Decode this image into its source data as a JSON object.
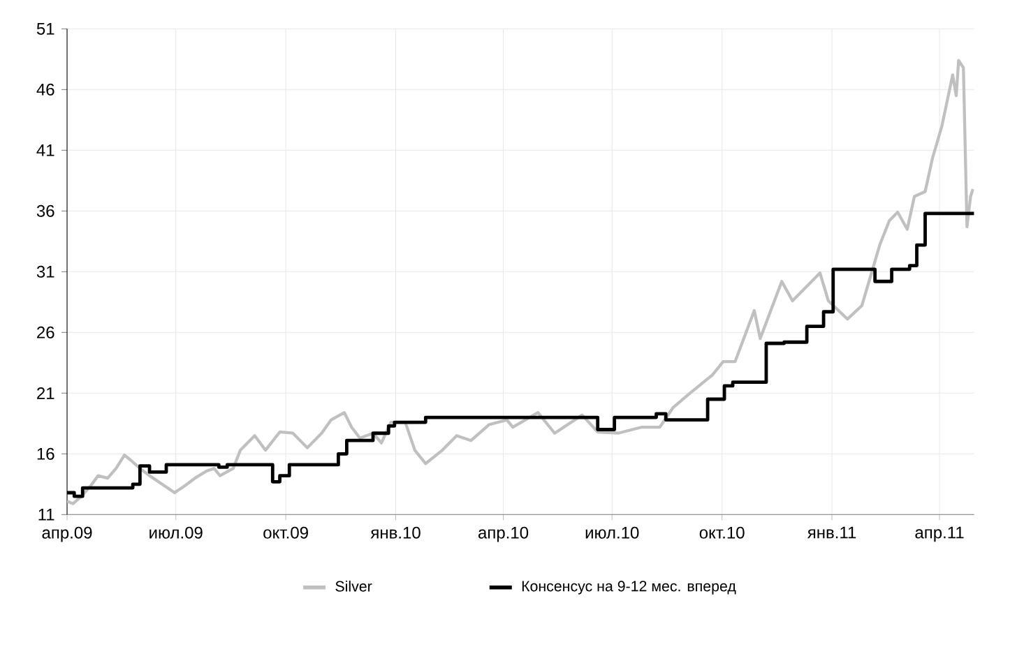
{
  "chart_data": {
    "type": "line",
    "xlim": [
      "2009-04-01",
      "2011-04-30"
    ],
    "ylim": [
      11,
      51
    ],
    "yticks": [
      11,
      16,
      21,
      26,
      31,
      36,
      41,
      46,
      51
    ],
    "xticks": [
      {
        "value": "2009-04-01",
        "label": "апр.09"
      },
      {
        "value": "2009-07-01",
        "label": "июл.09"
      },
      {
        "value": "2009-10-01",
        "label": "окт.09"
      },
      {
        "value": "2010-01-01",
        "label": "янв.10"
      },
      {
        "value": "2010-04-01",
        "label": "апр.10"
      },
      {
        "value": "2010-07-01",
        "label": "июл.10"
      },
      {
        "value": "2010-10-01",
        "label": "окт.10"
      },
      {
        "value": "2011-01-01",
        "label": "янв.11"
      },
      {
        "value": "2011-04-01",
        "label": "апр.11"
      }
    ],
    "grid": true,
    "legend": "bottom",
    "marker": "none",
    "line_style": "solid",
    "series": [
      {
        "name": "Silver",
        "color": "#c0c0c0",
        "x": [
          "2009-04-01",
          "2009-04-06",
          "2009-04-13",
          "2009-04-21",
          "2009-04-27",
          "2009-05-05",
          "2009-05-12",
          "2009-05-19",
          "2009-05-24",
          "2009-06-01",
          "2009-06-09",
          "2009-06-18",
          "2009-06-30",
          "2009-07-09",
          "2009-07-17",
          "2009-07-27",
          "2009-08-02",
          "2009-08-07",
          "2009-08-18",
          "2009-08-24",
          "2009-09-05",
          "2009-09-14",
          "2009-09-26",
          "2009-10-07",
          "2009-10-19",
          "2009-10-31",
          "2009-11-08",
          "2009-11-19",
          "2009-11-25",
          "2009-12-02",
          "2009-12-13",
          "2009-12-20",
          "2009-12-28",
          "2010-01-09",
          "2010-01-17",
          "2010-01-26",
          "2010-02-09",
          "2010-02-21",
          "2010-03-05",
          "2010-03-20",
          "2010-04-04",
          "2010-04-09",
          "2010-04-30",
          "2010-05-14",
          "2010-06-06",
          "2010-06-19",
          "2010-07-06",
          "2010-07-26",
          "2010-08-10",
          "2010-08-21",
          "2010-09-03",
          "2010-09-23",
          "2010-10-02",
          "2010-10-12",
          "2010-10-28",
          "2010-11-02",
          "2010-11-20",
          "2010-11-29",
          "2010-12-11",
          "2010-12-22",
          "2010-12-29",
          "2011-01-14",
          "2011-01-26",
          "2011-02-10",
          "2011-02-18",
          "2011-02-25",
          "2011-03-05",
          "2011-03-11",
          "2011-03-20",
          "2011-03-26",
          "2011-04-03",
          "2011-04-12",
          "2011-04-15",
          "2011-04-17",
          "2011-04-21",
          "2011-04-24",
          "2011-04-27",
          "2011-04-29"
        ],
        "values": [
          12.1,
          11.9,
          12.5,
          13.4,
          14.2,
          14.0,
          14.8,
          15.9,
          15.5,
          14.8,
          14.2,
          13.6,
          12.8,
          13.4,
          14.0,
          14.6,
          14.8,
          14.2,
          14.8,
          16.3,
          17.5,
          16.3,
          17.8,
          17.7,
          16.5,
          17.7,
          18.8,
          19.4,
          18.2,
          17.3,
          17.7,
          16.9,
          18.6,
          18.6,
          16.3,
          15.2,
          16.3,
          17.5,
          17.1,
          18.4,
          18.8,
          18.2,
          19.4,
          17.7,
          19.2,
          17.8,
          17.7,
          18.2,
          18.2,
          19.8,
          20.9,
          22.5,
          23.6,
          23.6,
          27.8,
          25.5,
          30.2,
          28.6,
          29.8,
          30.9,
          28.6,
          27.1,
          28.2,
          33.2,
          35.2,
          35.9,
          34.5,
          37.2,
          37.6,
          40.3,
          43.0,
          47.2,
          45.5,
          48.4,
          47.8,
          34.7,
          37.2,
          37.8
        ]
      },
      {
        "name": "Консенсус на 9-12 мес. вперед",
        "type": "step",
        "color": "#000000",
        "x": [
          "2009-04-01",
          "2009-04-07",
          "2009-04-14",
          "2009-05-26",
          "2009-06-01",
          "2009-06-09",
          "2009-06-23",
          "2009-08-06",
          "2009-08-13",
          "2009-09-20",
          "2009-09-26",
          "2009-10-04",
          "2009-11-14",
          "2009-11-21",
          "2009-12-13",
          "2009-12-26",
          "2009-12-31",
          "2010-01-26",
          "2010-06-19",
          "2010-07-03",
          "2010-08-07",
          "2010-08-15",
          "2010-09-19",
          "2010-10-03",
          "2010-10-10",
          "2010-11-07",
          "2010-11-22",
          "2010-12-11",
          "2010-12-25",
          "2011-01-02",
          "2011-02-06",
          "2011-02-20",
          "2011-03-07",
          "2011-03-13",
          "2011-03-20",
          "2011-04-30"
        ],
        "values": [
          12.8,
          12.5,
          13.2,
          13.5,
          15.0,
          14.5,
          15.1,
          14.9,
          15.1,
          13.7,
          14.2,
          15.1,
          16.0,
          17.1,
          17.7,
          18.3,
          18.6,
          19.0,
          18.0,
          19.0,
          19.3,
          18.8,
          20.5,
          21.6,
          21.9,
          25.1,
          25.2,
          26.5,
          27.7,
          31.2,
          30.2,
          31.2,
          31.5,
          33.2,
          35.8,
          35.8
        ]
      }
    ]
  }
}
